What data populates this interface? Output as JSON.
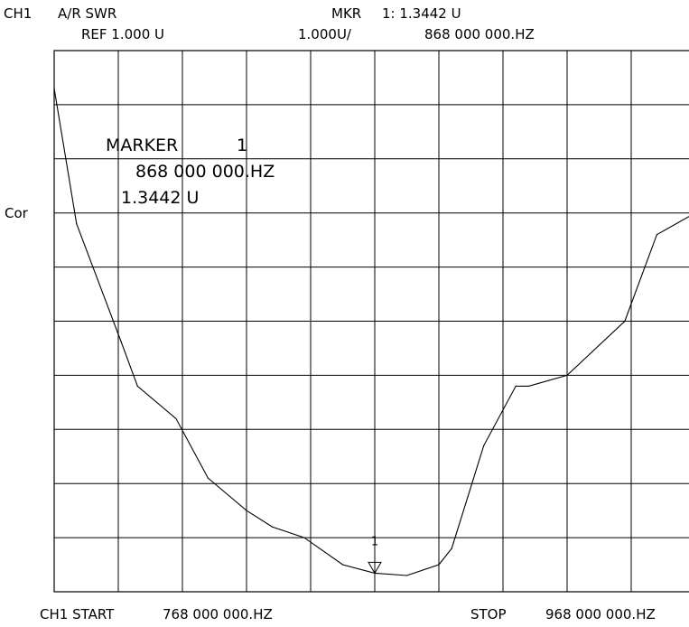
{
  "header": {
    "channel": "CH1",
    "measurement": "A/R SWR",
    "reference": "REF 1.000 U",
    "marker_label": "MKR",
    "marker_value": "1: 1.3442 U",
    "scale": "1.000U/",
    "marker_freq": "868 000 000.HZ"
  },
  "side_label": "Cor",
  "marker_box": {
    "title": "MARKER",
    "number": "1",
    "freq": "868 000 000.HZ",
    "value": "1.3442 U"
  },
  "footer": {
    "start_label": "CH1 START",
    "start_value": "768 000 000.HZ",
    "stop_label": "STOP",
    "stop_value": "968 000 000.HZ"
  },
  "chart_data": {
    "type": "line",
    "x_start": 768000000,
    "x_stop": 968000000,
    "xlim": [
      768000000,
      968000000
    ],
    "ylim": [
      1.0,
      11.0
    ],
    "x_divisions": 10,
    "y_divisions": 10,
    "grid": true,
    "reference_value": 1.0,
    "scale_per_div": 1.0,
    "series": [
      {
        "x": [
          768000000,
          775000000,
          789000000,
          794000000,
          806000000,
          816000000,
          828000000,
          836000000,
          846000000,
          858000000,
          868000000,
          878000000,
          888000000,
          892000000,
          902000000,
          912000000,
          916000000,
          928000000,
          946000000,
          956000000,
          968000000
        ],
        "y": [
          10.3,
          7.8,
          5.6,
          4.8,
          4.2,
          3.1,
          2.5,
          2.2,
          2.0,
          1.5,
          1.3442,
          1.3,
          1.5,
          1.8,
          3.7,
          4.8,
          4.8,
          5.0,
          6.0,
          7.6,
          8.0
        ]
      }
    ],
    "markers": [
      {
        "label": "1",
        "x": 868000000,
        "y": 1.3442
      }
    ]
  }
}
